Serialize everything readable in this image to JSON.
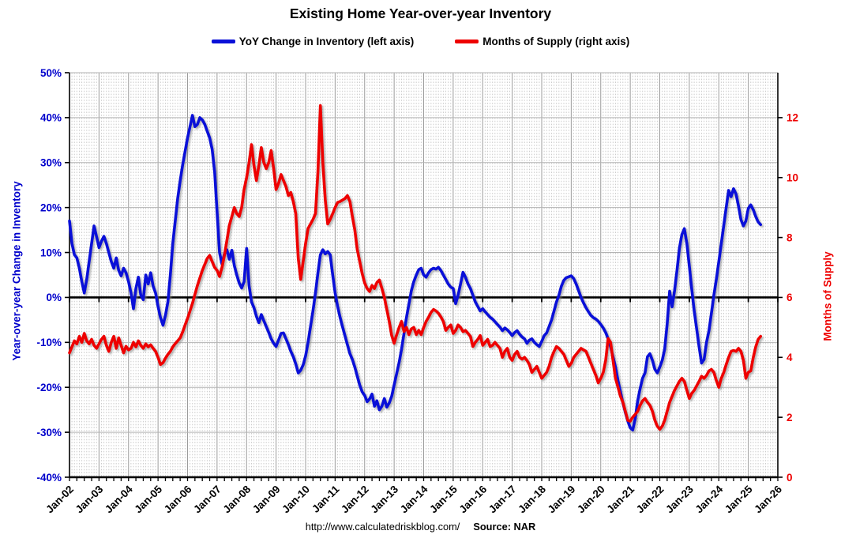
{
  "footer": {
    "url": "http://www.calculatedriskblog.com/",
    "source": "Source: NAR"
  },
  "chart_data": {
    "type": "line",
    "title": "Existing Home Year-over-year Inventory",
    "grid": true,
    "legend_position": "top-center",
    "x_axis": {
      "start": 2002,
      "end": 2026,
      "tick_labels": [
        "Jan-02",
        "Jan-03",
        "Jan-04",
        "Jan-05",
        "Jan-06",
        "Jan-07",
        "Jan-08",
        "Jan-09",
        "Jan-10",
        "Jan-11",
        "Jan-12",
        "Jan-13",
        "Jan-14",
        "Jan-15",
        "Jan-16",
        "Jan-17",
        "Jan-18",
        "Jan-19",
        "Jan-20",
        "Jan-21",
        "Jan-22",
        "Jan-23",
        "Jan-24",
        "Jan-25",
        "Jan-26"
      ]
    },
    "left_axis": {
      "label": "Year-over-year Change in Inventory",
      "min": -40,
      "max": 50,
      "color": "#0000cc",
      "tick_values": [
        50,
        40,
        30,
        20,
        10,
        0,
        -10,
        -20,
        -30,
        -40
      ],
      "tick_labels": [
        "50%",
        "40%",
        "30%",
        "20%",
        "10%",
        "0%",
        "-10%",
        "-20%",
        "-30%",
        "-40%"
      ]
    },
    "right_axis": {
      "label": "Months of Supply",
      "min": 0,
      "max": 13.5,
      "color": "#ee0000",
      "tick_values": [
        0,
        2,
        4,
        6,
        8,
        10,
        12
      ],
      "tick_labels": [
        "0",
        "2",
        "4",
        "6",
        "8",
        "10",
        "12"
      ]
    },
    "series": [
      {
        "name": "YoY Change in Inventory (left axis)",
        "axis": "left",
        "color": "#0a10d8",
        "start_year": 2002,
        "interval": "monthly",
        "values": [
          17,
          12,
          9.5,
          8.8,
          6.5,
          3.5,
          1,
          4,
          8,
          12,
          15.9,
          13.5,
          11.1,
          12.5,
          13.6,
          12,
          10,
          8,
          6.5,
          8.8,
          6,
          4.8,
          6.5,
          5.5,
          3.5,
          1,
          -2.5,
          2,
          4.5,
          0.5,
          -0.5,
          5,
          3,
          5.5,
          2.5,
          1,
          -2,
          -4.5,
          -6.2,
          -4,
          -1,
          5,
          12,
          17,
          22,
          26,
          29.5,
          32.5,
          35.5,
          38,
          40.5,
          38,
          38.5,
          40,
          39.5,
          38.5,
          37,
          35.5,
          33,
          28,
          19,
          10,
          7.4,
          9.7,
          10.6,
          8.5,
          10.5,
          7.1,
          5,
          3.2,
          2.1,
          3.5,
          10.9,
          2.6,
          -1,
          -2.3,
          -4.2,
          -5.6,
          -3.8,
          -5.2,
          -6.5,
          -7.8,
          -9.2,
          -10.2,
          -10.9,
          -9.5,
          -8,
          -7.9,
          -9.2,
          -10.5,
          -12,
          -13.2,
          -14.8,
          -16.8,
          -16.2,
          -15,
          -13,
          -10,
          -6.5,
          -3,
          1,
          5.5,
          9.5,
          10.6,
          9.7,
          10.2,
          9.5,
          5,
          1,
          -2,
          -4.4,
          -6.5,
          -8.5,
          -10.5,
          -12.5,
          -13.8,
          -15.5,
          -17.5,
          -19.5,
          -21,
          -21.8,
          -23.2,
          -22.6,
          -21.5,
          -24.2,
          -23,
          -25,
          -24.2,
          -22.5,
          -24.4,
          -23.5,
          -22,
          -19.5,
          -17,
          -14.5,
          -11.5,
          -8,
          -4.5,
          -1.5,
          1.5,
          3.5,
          5,
          6.2,
          6.5,
          5,
          4.5,
          5.5,
          6.2,
          6.5,
          6.3,
          6.7,
          6,
          5,
          4,
          3,
          2.3,
          2,
          -1.4,
          0.5,
          3,
          5.6,
          4.5,
          3,
          2,
          0.5,
          -1,
          -2,
          -3,
          -2.5,
          -3.2,
          -3.8,
          -4.4,
          -4.8,
          -5.4,
          -6,
          -6.6,
          -7.4,
          -6.8,
          -7.2,
          -7.8,
          -8.5,
          -7.8,
          -7.4,
          -8.2,
          -8.8,
          -9.2,
          -10.2,
          -9.5,
          -9.2,
          -10,
          -10.5,
          -10.9,
          -9.8,
          -8.5,
          -7.9,
          -6.5,
          -5,
          -3,
          -1,
          0.5,
          2.5,
          3.8,
          4.4,
          4.6,
          4.8,
          4.2,
          3,
          1.5,
          0,
          -1.2,
          -2.3,
          -3.2,
          -4,
          -4.5,
          -4.8,
          -5.3,
          -6,
          -6.8,
          -7.8,
          -9.2,
          -11,
          -13.2,
          -15.5,
          -18.5,
          -21,
          -23.5,
          -25.6,
          -27.5,
          -29,
          -29.5,
          -27,
          -23,
          -20.3,
          -18,
          -16.8,
          -13.2,
          -12.5,
          -14,
          -16,
          -16.8,
          -15.5,
          -14,
          -11.5,
          -6,
          1.4,
          -2.1,
          1.5,
          6,
          11,
          14,
          15.3,
          12,
          7,
          1.8,
          -3,
          -7,
          -11,
          -14.6,
          -13.8,
          -10,
          -7.4,
          -3.5,
          0.5,
          4,
          8,
          12,
          16,
          20,
          23.8,
          22.4,
          24.2,
          23,
          20.3,
          17.3,
          15.9,
          17,
          19.8,
          20.6,
          19.5,
          18,
          16.8,
          16.2
        ]
      },
      {
        "name": "Months of Supply (right axis)",
        "axis": "right",
        "color": "#ee0000",
        "start_year": 2002,
        "interval": "monthly",
        "values": [
          4.15,
          4.35,
          4.55,
          4.45,
          4.7,
          4.5,
          4.8,
          4.55,
          4.45,
          4.6,
          4.4,
          4.3,
          4.45,
          4.6,
          4.7,
          4.4,
          4.2,
          4.5,
          4.7,
          4.3,
          4.65,
          4.4,
          4.15,
          4.37,
          4.25,
          4.3,
          4.5,
          4.35,
          4.55,
          4.4,
          4.3,
          4.45,
          4.35,
          4.42,
          4.3,
          4.2,
          4.0,
          3.76,
          3.82,
          3.97,
          4.1,
          4.2,
          4.35,
          4.46,
          4.55,
          4.65,
          4.85,
          5.08,
          5.3,
          5.55,
          5.8,
          6.1,
          6.4,
          6.65,
          6.9,
          7.1,
          7.3,
          7.4,
          7.2,
          7.0,
          6.9,
          6.7,
          7.0,
          7.4,
          7.9,
          8.4,
          8.7,
          9.0,
          8.8,
          8.7,
          9.0,
          9.6,
          10.0,
          10.5,
          11.1,
          10.4,
          9.9,
          10.4,
          11.0,
          10.5,
          10.3,
          10.5,
          10.9,
          10.3,
          9.6,
          9.8,
          10.1,
          9.9,
          9.7,
          9.4,
          9.5,
          9.2,
          8.8,
          7.3,
          6.6,
          7.2,
          7.8,
          8.3,
          8.45,
          8.6,
          8.8,
          10.2,
          12.4,
          10.5,
          9.25,
          8.45,
          8.6,
          8.8,
          9.0,
          9.17,
          9.2,
          9.25,
          9.3,
          9.4,
          9.2,
          8.7,
          8.25,
          7.6,
          7.2,
          6.8,
          6.48,
          6.3,
          6.2,
          6.4,
          6.3,
          6.5,
          6.58,
          6.3,
          6.0,
          5.6,
          5.2,
          4.73,
          4.47,
          4.75,
          5.0,
          5.2,
          4.86,
          5.0,
          4.76,
          4.95,
          5.0,
          4.76,
          4.9,
          4.76,
          5.0,
          5.2,
          5.34,
          5.5,
          5.6,
          5.55,
          5.47,
          5.35,
          5.2,
          4.9,
          5.0,
          5.08,
          4.8,
          4.9,
          5.08,
          5.0,
          4.86,
          4.9,
          4.8,
          4.7,
          4.36,
          4.5,
          4.6,
          4.73,
          4.4,
          4.5,
          4.6,
          4.36,
          4.4,
          4.5,
          4.4,
          4.3,
          4.0,
          4.2,
          4.3,
          4.0,
          3.9,
          4.1,
          4.2,
          4.0,
          3.94,
          4.0,
          3.9,
          3.76,
          3.5,
          3.6,
          3.7,
          3.5,
          3.3,
          3.4,
          3.5,
          3.7,
          4.0,
          4.2,
          4.36,
          4.3,
          4.2,
          4.1,
          3.9,
          3.7,
          3.8,
          4.0,
          4.1,
          4.2,
          4.3,
          4.25,
          4.2,
          4.0,
          3.8,
          3.6,
          3.4,
          3.15,
          3.3,
          3.5,
          3.9,
          4.63,
          4.5,
          3.9,
          3.3,
          3.0,
          2.7,
          2.5,
          2.2,
          1.9,
          1.87,
          2.0,
          2.1,
          2.2,
          2.4,
          2.55,
          2.63,
          2.5,
          2.4,
          2.2,
          1.9,
          1.7,
          1.6,
          1.7,
          1.9,
          2.2,
          2.5,
          2.7,
          2.9,
          3.05,
          3.2,
          3.3,
          3.2,
          2.9,
          2.63,
          2.8,
          2.9,
          3.05,
          3.2,
          3.37,
          3.3,
          3.4,
          3.55,
          3.6,
          3.5,
          3.23,
          3.0,
          3.3,
          3.5,
          3.76,
          4.0,
          4.2,
          4.23,
          4.2,
          4.3,
          4.2,
          3.9,
          3.3,
          3.5,
          3.55,
          4.0,
          4.35,
          4.6,
          4.7
        ]
      }
    ]
  }
}
